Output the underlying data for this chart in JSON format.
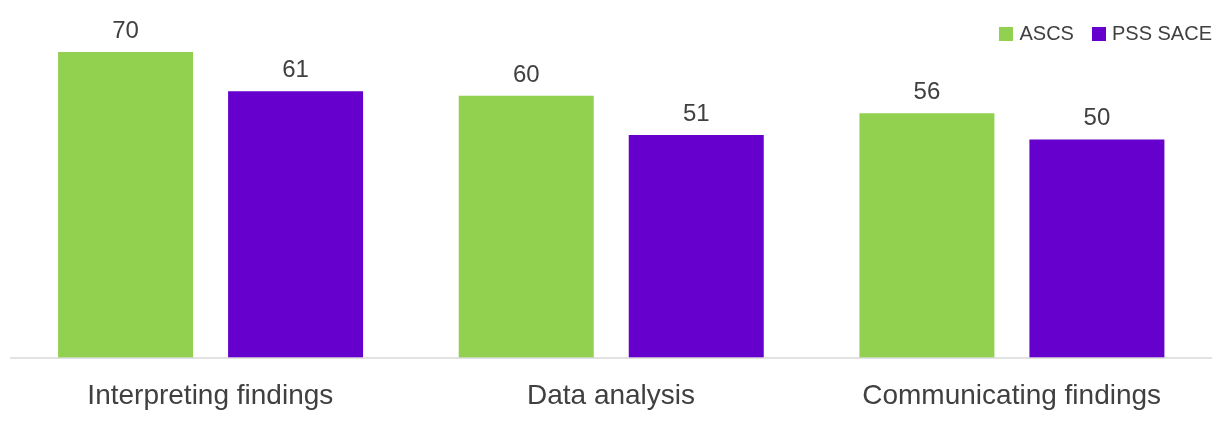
{
  "chart_data": {
    "type": "bar",
    "categories": [
      "Interpreting findings",
      "Data analysis",
      "Communicating findings"
    ],
    "series": [
      {
        "name": "ASCS",
        "color": "#92d050",
        "values": [
          70,
          60,
          56
        ]
      },
      {
        "name": "PSS SACE",
        "color": "#6600cc",
        "values": [
          61,
          51,
          50
        ]
      }
    ],
    "data_labels": true,
    "legend": "top right",
    "grid": false
  }
}
